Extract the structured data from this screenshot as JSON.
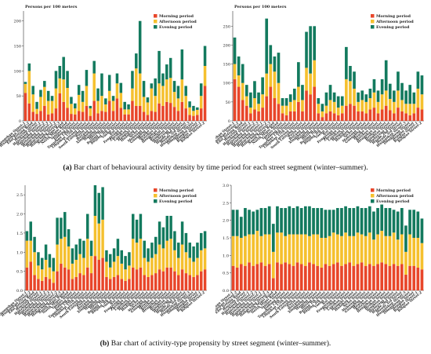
{
  "captions": {
    "a_label": "(a)",
    "a_text": "Bar chart of behavioural activity density by time period for each street segment (winter–summer).",
    "b_label": "(b)",
    "b_text": "Bar chart of activity-type propensity by street segment (winter–summer)."
  },
  "colors": {
    "morning": "#e8462a",
    "afternoon": "#f5c02e",
    "evening": "#137a5e"
  },
  "chart_data": [
    {
      "type": "bar",
      "stacked": true,
      "ylabel": "Persons per 100 meters",
      "ylim": [
        0,
        220
      ],
      "yticks": [
        0,
        50,
        100,
        150,
        200
      ],
      "legend_position": "top-right",
      "legend": [
        "Morning period",
        "Afternoon period",
        "Evening period"
      ],
      "categories": [
        "Huangshan Street-1",
        "Huangshan Street-2",
        "East Jiefang Road",
        "Huoying Street",
        "Hanzhong Street-1",
        "Hanzhong Street-2",
        "Hanzhong Street-3",
        "Hangcheng Street-1",
        "Hangcheng Street-2",
        "Hangcheng Street-3",
        "South Minsi Road",
        "North Minsi Road",
        "Yanjiao Street",
        "Jiadong Street",
        "Tangzhou 13th Street",
        "Lingshan 15th Street",
        "Luoyang Street",
        "South Luoyang Street",
        "Puyin Street",
        "Huyang Street",
        "Xingsheng Street",
        "Haiqing Street",
        "Huxing Street",
        "Beijing 1th Street",
        "Beijing 3th Street",
        "Yuehu Street",
        "Rui Street",
        "Fengxiang Street",
        "Zheshan Street",
        "Lanshan Street",
        "Hongshi Street",
        "Huashan Street",
        "Sichu Street",
        "Mahuang Street",
        "Guanghua Street",
        "Huaihe Street",
        "Ruizhou Street",
        "Hengshan Street",
        "Heshan Street",
        "Tongbian Street",
        "Huanyang Street",
        "Huade 2nd Street",
        "Huade 3rd Street",
        "Huangshan Street-3",
        "Dongsheng Street",
        "Hongan Street",
        "Beiqiao Street-1",
        "Beiqiao Street-2"
      ],
      "series": [
        {
          "name": "Morning period",
          "values": [
            56,
            35,
            18,
            14,
            20,
            30,
            13,
            15,
            25,
            55,
            38,
            26,
            14,
            13,
            20,
            18,
            30,
            10,
            40,
            15,
            20,
            18,
            40,
            20,
            45,
            26,
            13,
            13,
            40,
            30,
            30,
            18,
            12,
            20,
            18,
            35,
            30,
            38,
            36,
            28,
            20,
            38,
            25,
            12,
            10,
            12,
            25,
            70
          ]
        },
        {
          "name": "Afternoon period",
          "values": [
            18,
            65,
            35,
            10,
            28,
            38,
            27,
            25,
            40,
            30,
            45,
            40,
            20,
            12,
            32,
            20,
            40,
            15,
            55,
            25,
            30,
            15,
            20,
            20,
            30,
            30,
            10,
            10,
            25,
            75,
            65,
            30,
            25,
            45,
            32,
            40,
            40,
            45,
            50,
            30,
            25,
            45,
            25,
            15,
            10,
            10,
            25,
            40
          ]
        },
        {
          "name": "Evening period",
          "values": [
            4,
            15,
            17,
            14,
            14,
            12,
            20,
            10,
            35,
            25,
            45,
            34,
            14,
            10,
            20,
            22,
            32,
            5,
            25,
            25,
            45,
            12,
            32,
            10,
            20,
            20,
            15,
            10,
            35,
            30,
            105,
            32,
            10,
            10,
            35,
            65,
            25,
            30,
            40,
            22,
            25,
            60,
            20,
            12,
            10,
            5,
            25,
            40
          ]
        }
      ]
    },
    {
      "type": "bar",
      "stacked": true,
      "ylabel": "Persons per 100 meters",
      "ylim": [
        0,
        290
      ],
      "yticks": [
        0,
        50,
        100,
        150,
        200,
        250
      ],
      "legend_position": "top-right",
      "legend": [
        "Morning period",
        "Afternoon period",
        "Evening period"
      ],
      "categories": [
        "Huangshan Street-1",
        "Huangshan Street-2",
        "East Jiefang Road",
        "Huoying Street",
        "Hanzhong Street-1",
        "Hanzhong Street-2",
        "Hanzhong Street-3",
        "Hangcheng Street-1",
        "Hangcheng Street-2",
        "Hangcheng Street-3",
        "South Minsi Road",
        "North Minsi Road",
        "Yanjiao Street",
        "Jiadong Street",
        "Tangzhou 13th Street",
        "Lingshan 15th Street",
        "Luoyang Street",
        "South Luoyang Street",
        "Puyin Street",
        "Huyang Street",
        "Xingsheng Street",
        "Haiqing Street",
        "Huxing Street",
        "Beijing 1th Street",
        "Beijing 3th Street",
        "Yuehu Street",
        "Rui Street",
        "Fengxiang Street",
        "Zheshan Street",
        "Lanshan Street",
        "Hongshi Street",
        "Huashan Street",
        "Sichu Street",
        "Mahuang Street",
        "Guanghua Street",
        "Huaihe Street",
        "Ruizhou Street",
        "Hengshan Street",
        "Heshan Street",
        "Tongbian Street",
        "Huanyang Street",
        "Huade 2nd Street",
        "Huade 3rd Street",
        "Huangshan Street-3",
        "Dongsheng Street",
        "Hongan Street",
        "Beiqiao Street-1",
        "Beiqiao Street-2"
      ],
      "series": [
        {
          "name": "Morning period",
          "values": [
            110,
            90,
            55,
            40,
            20,
            30,
            25,
            35,
            65,
            90,
            60,
            45,
            20,
            15,
            25,
            25,
            50,
            25,
            80,
            70,
            90,
            20,
            10,
            20,
            25,
            20,
            15,
            20,
            40,
            45,
            40,
            25,
            25,
            20,
            30,
            35,
            20,
            30,
            40,
            28,
            20,
            35,
            25,
            20,
            15,
            20,
            35,
            30
          ]
        },
        {
          "name": "Afternoon period",
          "values": [
            40,
            30,
            45,
            25,
            15,
            30,
            20,
            35,
            60,
            60,
            70,
            55,
            20,
            25,
            25,
            30,
            40,
            30,
            60,
            55,
            70,
            25,
            15,
            20,
            30,
            30,
            20,
            20,
            70,
            60,
            45,
            25,
            30,
            30,
            30,
            40,
            30,
            40,
            40,
            30,
            30,
            45,
            30,
            25,
            30,
            25,
            50,
            40
          ]
        },
        {
          "name": "Evening period",
          "values": [
            70,
            50,
            50,
            30,
            40,
            45,
            30,
            45,
            145,
            50,
            40,
            80,
            20,
            20,
            20,
            30,
            65,
            40,
            95,
            125,
            90,
            15,
            20,
            35,
            40,
            25,
            30,
            25,
            85,
            40,
            45,
            25,
            25,
            20,
            25,
            35,
            30,
            40,
            80,
            40,
            30,
            50,
            45,
            35,
            50,
            30,
            45,
            50
          ]
        }
      ]
    },
    {
      "type": "bar",
      "stacked": true,
      "ylim": [
        0,
        2.75
      ],
      "yticks": [
        0.0,
        0.5,
        1.0,
        1.5,
        2.0,
        2.5
      ],
      "legend_position": "top-right",
      "legend": [
        "Morning period",
        "Afternoon period",
        "Evening period"
      ],
      "categories": [
        "Huangshan Street-1",
        "Huangshan Street-2",
        "East Jiefang Road",
        "Huoying Street",
        "Hanzhong Street-1",
        "Hanzhong Street-2",
        "Hanzhong Street-3",
        "Hangcheng Street-1",
        "Hangcheng Street-2",
        "Hangcheng Street-3",
        "South Minsi Road",
        "North Minsi Road",
        "Yanjiao Street",
        "Jiadong Street",
        "Tangzhou 13th Street",
        "Lingshan 15th Street",
        "Luoyang Street",
        "South Luoyang Street",
        "Puyin Street",
        "Huyang Street",
        "Xingsheng Street",
        "Haiqing Street",
        "Huxing Street",
        "Beijing 1th Street",
        "Beijing 3th Street",
        "Yuehu Street",
        "Rui Street",
        "Fengxiang Street",
        "Zheshan Street",
        "Lanshan Street",
        "Hongshi Street",
        "Huashan Street",
        "Sichu Street",
        "Mahuang Street",
        "Guanghua Street",
        "Huaihe Street",
        "Ruizhou Street",
        "Hengshan Street",
        "Heshan Street",
        "Tongbian Street",
        "Huanyang Street",
        "Huade 2nd Street",
        "Huade 3rd Street",
        "Huangshan Street-3",
        "Dongsheng Street",
        "Hongan Street",
        "Beiqiao Street-1",
        "Beiqiao Street-2"
      ],
      "series": [
        {
          "name": "Morning period",
          "values": [
            0.6,
            0.75,
            0.4,
            0.3,
            0.25,
            0.35,
            0.3,
            0.2,
            0.5,
            0.7,
            0.6,
            0.55,
            0.3,
            0.35,
            0.45,
            0.4,
            0.6,
            0.45,
            0.9,
            0.8,
            0.85,
            0.35,
            0.3,
            0.35,
            0.4,
            0.3,
            0.25,
            0.3,
            0.6,
            0.55,
            0.6,
            0.4,
            0.35,
            0.4,
            0.45,
            0.55,
            0.5,
            0.6,
            0.6,
            0.5,
            0.4,
            0.55,
            0.45,
            0.4,
            0.35,
            0.4,
            0.5,
            0.55
          ]
        },
        {
          "name": "Afternoon period",
          "values": [
            0.7,
            0.55,
            0.6,
            0.35,
            0.3,
            0.45,
            0.3,
            0.3,
            0.7,
            0.65,
            0.8,
            0.6,
            0.4,
            0.45,
            0.5,
            0.45,
            0.75,
            0.45,
            1.05,
            0.95,
            1.0,
            0.4,
            0.3,
            0.4,
            0.5,
            0.4,
            0.3,
            0.35,
            0.75,
            0.7,
            0.75,
            0.45,
            0.4,
            0.45,
            0.5,
            0.65,
            0.6,
            0.7,
            0.75,
            0.55,
            0.45,
            0.65,
            0.55,
            0.45,
            0.4,
            0.45,
            0.55,
            0.55
          ]
        },
        {
          "name": "Evening period",
          "values": [
            0.25,
            0.5,
            0.4,
            0.35,
            0.3,
            0.4,
            0.35,
            0.35,
            0.7,
            0.55,
            0.65,
            0.45,
            0.4,
            0.4,
            0.4,
            0.45,
            0.65,
            0.4,
            0.8,
            0.8,
            0.85,
            0.3,
            0.35,
            0.35,
            0.45,
            0.35,
            0.35,
            0.35,
            0.65,
            0.6,
            0.65,
            0.45,
            0.35,
            0.4,
            0.45,
            0.6,
            0.55,
            0.65,
            0.6,
            0.5,
            0.4,
            0.6,
            0.5,
            0.4,
            0.4,
            0.4,
            0.45,
            0.45
          ]
        }
      ]
    },
    {
      "type": "bar",
      "stacked": true,
      "ylim": [
        0,
        3.0
      ],
      "yticks": [
        0.0,
        0.5,
        1.0,
        1.5,
        2.0,
        2.5,
        3.0
      ],
      "legend_position": "top-right",
      "legend": [
        "Morning period",
        "Afternoon period",
        "Evening period"
      ],
      "categories": [
        "Huangshan Street-1",
        "Huangshan Street-2",
        "East Jiefang Road",
        "Huoying Street",
        "Hanzhong Street-1",
        "Hanzhong Street-2",
        "Hanzhong Street-3",
        "Hangcheng Street-1",
        "Hangcheng Street-2",
        "Hangcheng Street-3",
        "South Minsi Road",
        "North Minsi Road",
        "Yanjiao Street",
        "Jiadong Street",
        "Tangzhou 13th Street",
        "Lingshan 15th Street",
        "Luoyang Street",
        "South Luoyang Street",
        "Puyin Street",
        "Huyang Street",
        "Xingsheng Street",
        "Haiqing Street",
        "Huxing Street",
        "Beijing 1th Street",
        "Beijing 3th Street",
        "Yuehu Street",
        "Rui Street",
        "Fengxiang Street",
        "Zheshan Street",
        "Lanshan Street",
        "Hongshi Street",
        "Huashan Street",
        "Sichu Street",
        "Mahuang Street",
        "Guanghua Street",
        "Huaihe Street",
        "Ruizhou Street",
        "Hengshan Street",
        "Heshan Street",
        "Tongbian Street",
        "Huanyang Street",
        "Huade 2nd Street",
        "Huade 3rd Street",
        "Huangshan Street-3",
        "Dongsheng Street",
        "Hongan Street",
        "Beiqiao Street-1",
        "Beiqiao Street-2"
      ],
      "series": [
        {
          "name": "Morning period",
          "values": [
            0.7,
            0.65,
            0.75,
            0.7,
            0.8,
            0.7,
            0.75,
            0.8,
            0.7,
            0.75,
            0.35,
            0.8,
            0.75,
            0.8,
            0.75,
            0.7,
            0.8,
            0.75,
            0.7,
            0.8,
            0.75,
            0.7,
            0.65,
            0.75,
            0.7,
            0.75,
            0.8,
            0.7,
            0.75,
            0.8,
            0.7,
            0.75,
            0.8,
            0.7,
            0.75,
            0.7,
            0.75,
            0.8,
            0.75,
            0.7,
            0.75,
            0.7,
            0.75,
            0.45,
            0.7,
            0.7,
            0.65,
            0.6
          ]
        },
        {
          "name": "Afternoon period",
          "values": [
            0.85,
            0.9,
            0.75,
            0.85,
            0.8,
            0.9,
            0.95,
            0.75,
            0.9,
            0.85,
            0.75,
            0.85,
            0.9,
            0.75,
            0.85,
            0.9,
            0.8,
            0.85,
            0.9,
            0.75,
            0.85,
            0.9,
            0.85,
            0.75,
            0.85,
            0.9,
            0.8,
            0.85,
            0.9,
            0.75,
            0.85,
            0.9,
            0.8,
            0.85,
            0.9,
            0.75,
            0.85,
            0.9,
            0.8,
            0.85,
            0.9,
            0.75,
            0.85,
            0.65,
            0.9,
            0.8,
            0.85,
            0.75
          ]
        },
        {
          "name": "Evening period",
          "values": [
            0.75,
            0.75,
            0.6,
            0.8,
            0.7,
            0.65,
            0.6,
            0.8,
            0.75,
            0.8,
            0.8,
            0.75,
            0.7,
            0.8,
            0.8,
            0.75,
            0.8,
            0.75,
            0.8,
            0.85,
            0.75,
            0.75,
            0.85,
            0.8,
            0.75,
            0.65,
            0.75,
            0.8,
            0.75,
            0.8,
            0.8,
            0.75,
            0.75,
            0.8,
            0.75,
            0.8,
            0.75,
            0.75,
            0.8,
            0.8,
            0.65,
            0.8,
            0.75,
            0.75,
            0.7,
            0.8,
            0.75,
            0.7
          ]
        }
      ]
    }
  ]
}
